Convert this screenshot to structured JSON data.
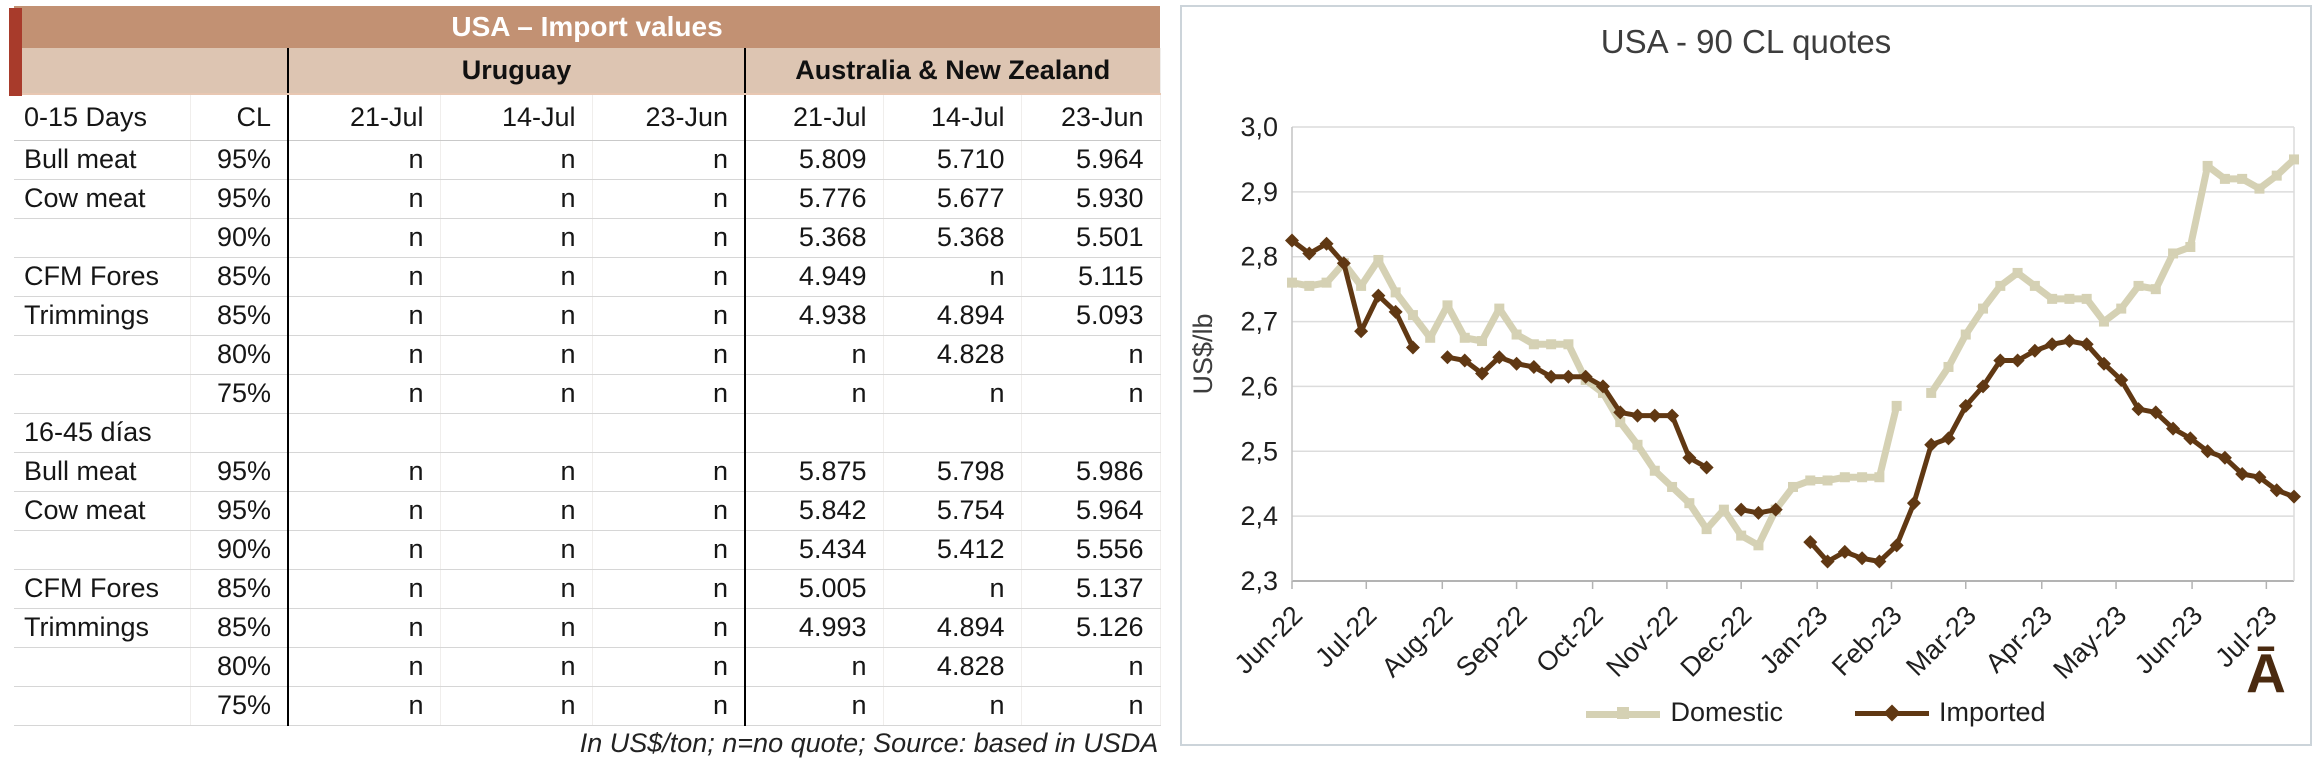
{
  "table": {
    "title": "USA – Import values",
    "group_headers": {
      "uruguay": "Uruguay",
      "anz": "Australia & New Zealand"
    },
    "columns": [
      "0-15 Days",
      "CL",
      "21-Jul",
      "14-Jul",
      "23-Jun",
      "21-Jul",
      "14-Jul",
      "23-Jun"
    ],
    "rows": [
      {
        "label": "Bull meat",
        "cl": "95%",
        "cells": [
          "n",
          "n",
          "n",
          "5.809",
          "5.710",
          "5.964"
        ]
      },
      {
        "label": "Cow meat",
        "cl": "95%",
        "cells": [
          "n",
          "n",
          "n",
          "5.776",
          "5.677",
          "5.930"
        ]
      },
      {
        "label": "",
        "cl": "90%",
        "cells": [
          "n",
          "n",
          "n",
          "5.368",
          "5.368",
          "5.501"
        ]
      },
      {
        "label": "CFM Fores",
        "cl": "85%",
        "cells": [
          "n",
          "n",
          "n",
          "4.949",
          "n",
          "5.115"
        ]
      },
      {
        "label": "Trimmings",
        "cl": "85%",
        "cells": [
          "n",
          "n",
          "n",
          "4.938",
          "4.894",
          "5.093"
        ]
      },
      {
        "label": "",
        "cl": "80%",
        "cells": [
          "n",
          "n",
          "n",
          "n",
          "4.828",
          "n"
        ]
      },
      {
        "label": "",
        "cl": "75%",
        "cells": [
          "n",
          "n",
          "n",
          "n",
          "n",
          "n"
        ]
      },
      {
        "label": "16-45 días",
        "cl": "",
        "cells": [
          "",
          "",
          "",
          "",
          "",
          ""
        ],
        "section": true
      },
      {
        "label": "Bull meat",
        "cl": "95%",
        "cells": [
          "n",
          "n",
          "n",
          "5.875",
          "5.798",
          "5.986"
        ]
      },
      {
        "label": "Cow meat",
        "cl": "95%",
        "cells": [
          "n",
          "n",
          "n",
          "5.842",
          "5.754",
          "5.964"
        ]
      },
      {
        "label": "",
        "cl": "90%",
        "cells": [
          "n",
          "n",
          "n",
          "5.434",
          "5.412",
          "5.556"
        ]
      },
      {
        "label": "CFM Fores",
        "cl": "85%",
        "cells": [
          "n",
          "n",
          "n",
          "5.005",
          "n",
          "5.137"
        ]
      },
      {
        "label": "Trimmings",
        "cl": "85%",
        "cells": [
          "n",
          "n",
          "n",
          "4.993",
          "4.894",
          "5.126"
        ]
      },
      {
        "label": "",
        "cl": "80%",
        "cells": [
          "n",
          "n",
          "n",
          "n",
          "4.828",
          "n"
        ]
      },
      {
        "label": "",
        "cl": "75%",
        "cells": [
          "n",
          "n",
          "n",
          "n",
          "n",
          "n"
        ]
      }
    ],
    "footnote": "In US$/ton; n=no quote; Source: based in USDA"
  },
  "chart_data": {
    "type": "line",
    "title": "USA - 90 CL quotes",
    "ylabel": "US$/lb",
    "ylim": [
      2.3,
      3.0
    ],
    "ytick_step": 0.1,
    "ytick_labels": [
      "2,3",
      "2,4",
      "2,5",
      "2,6",
      "2,7",
      "2,8",
      "2,9",
      "3,0"
    ],
    "x_tick_labels": [
      "Jun-22",
      "Jul-22",
      "Aug-22",
      "Sep-22",
      "Oct-22",
      "Nov-22",
      "Dec-22",
      "Jan-23",
      "Feb-23",
      "Mar-23",
      "Apr-23",
      "May-23",
      "Jun-23",
      "Jul-23"
    ],
    "x_tick_weeks": [
      0,
      4.3,
      8.7,
      13,
      17.4,
      21.7,
      26,
      30.4,
      34.7,
      39,
      43.4,
      47.7,
      52.1,
      56.4
    ],
    "x_unit": "week",
    "grid": true,
    "legend_position": "bottom",
    "watermark": "Ā",
    "series": [
      {
        "name": "Domestic",
        "color": "#d5d1b4",
        "marker": "square",
        "values": [
          2.76,
          2.755,
          2.76,
          2.79,
          2.755,
          2.795,
          2.745,
          2.71,
          2.675,
          2.725,
          2.675,
          2.67,
          2.72,
          2.68,
          2.665,
          2.665,
          2.665,
          2.61,
          2.59,
          2.545,
          2.51,
          2.47,
          2.445,
          2.42,
          2.38,
          2.41,
          2.37,
          2.355,
          2.41,
          2.445,
          2.455,
          2.455,
          2.46,
          2.46,
          2.46,
          2.57,
          null,
          2.59,
          2.63,
          2.68,
          2.72,
          2.755,
          2.775,
          2.755,
          2.735,
          2.735,
          2.735,
          2.7,
          2.72,
          2.755,
          2.75,
          2.805,
          2.815,
          2.94,
          2.92,
          2.92,
          2.905,
          2.925,
          2.95
        ]
      },
      {
        "name": "Imported",
        "color": "#603813",
        "marker": "diamond",
        "values": [
          2.825,
          2.805,
          2.82,
          2.79,
          2.685,
          2.74,
          2.715,
          2.66,
          null,
          2.645,
          2.64,
          2.62,
          2.645,
          2.635,
          2.63,
          2.615,
          2.615,
          2.615,
          2.6,
          2.56,
          2.555,
          2.555,
          2.555,
          2.49,
          2.475,
          null,
          2.41,
          2.405,
          2.41,
          null,
          2.36,
          2.33,
          2.345,
          2.335,
          2.33,
          2.355,
          2.42,
          2.51,
          2.52,
          2.57,
          2.6,
          2.64,
          2.64,
          2.655,
          2.665,
          2.67,
          2.665,
          2.635,
          2.61,
          2.565,
          2.56,
          2.535,
          2.52,
          2.5,
          2.49,
          2.465,
          2.46,
          2.44,
          2.43
        ]
      }
    ]
  },
  "colors": {
    "table_header_bg": "#c29173",
    "table_subheader_bg": "#ddc5b2",
    "accent_strip": "#a83b2b",
    "grid": "#dcdcdc",
    "axis": "#b3b3b3"
  }
}
